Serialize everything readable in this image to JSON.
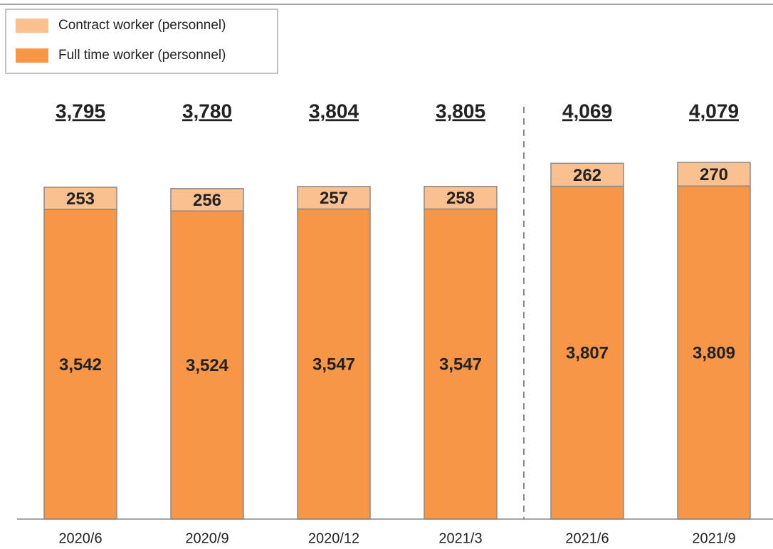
{
  "chart_data": {
    "type": "stacked_bar",
    "categories": [
      "2020/6",
      "2020/9",
      "2020/12",
      "2021/3",
      "2021/6",
      "2021/9"
    ],
    "series": [
      {
        "name": "Full time worker (personnel)",
        "color": "#f79646",
        "values": [
          3542,
          3524,
          3547,
          3547,
          3807,
          3809
        ],
        "value_labels": [
          "3,542",
          "3,524",
          "3,547",
          "3,547",
          "3,807",
          "3,809"
        ]
      },
      {
        "name": "Contract worker (personnel)",
        "color": "#fac090",
        "values": [
          253,
          256,
          257,
          258,
          262,
          270
        ],
        "value_labels": [
          "253",
          "256",
          "257",
          "258",
          "262",
          "270"
        ]
      }
    ],
    "totals": {
      "values": [
        3795,
        3780,
        3804,
        3805,
        4069,
        4079
      ],
      "value_labels": [
        "3,795",
        "3,780",
        "3,804",
        "3,805",
        "4,069",
        "4,079"
      ]
    },
    "ylim": [
      0,
      5000
    ],
    "legend": "upper left"
  }
}
